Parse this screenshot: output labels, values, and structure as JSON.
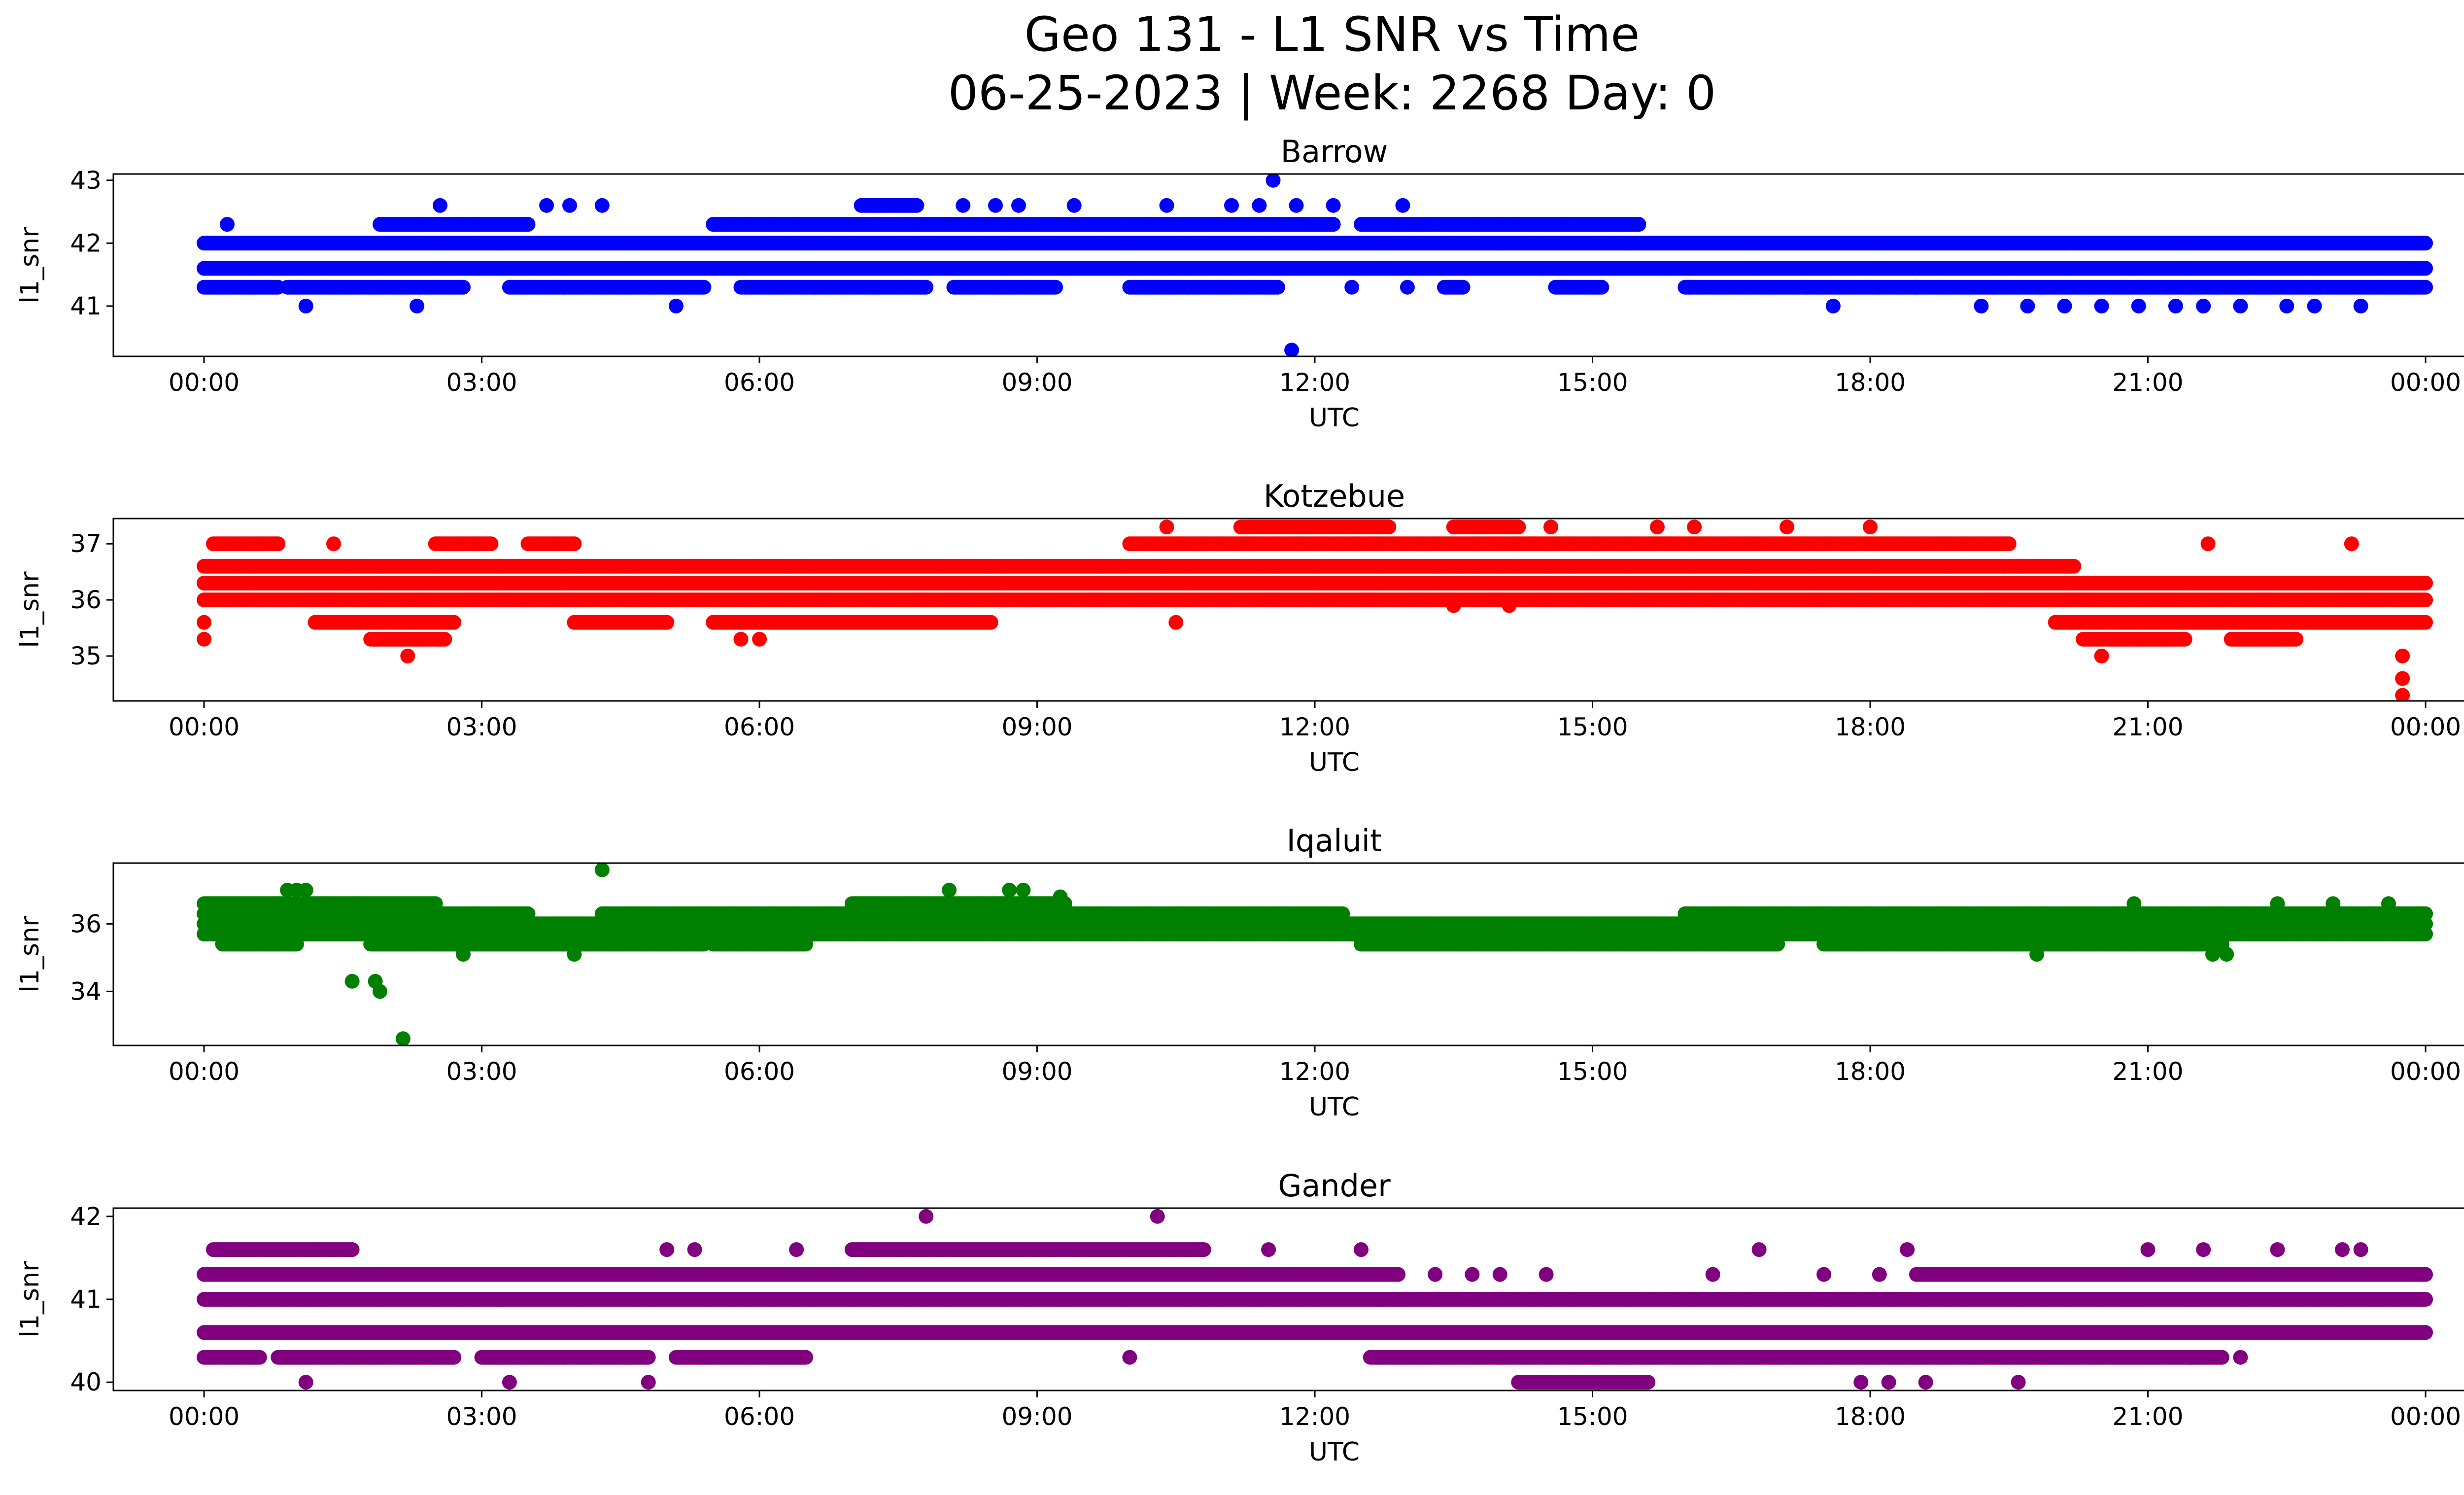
{
  "figure": {
    "title_line1": "Geo 131 - L1 SNR vs Time",
    "title_line2": "06-25-2023 | Week: 2268 Day: 0"
  },
  "chart_data": [
    {
      "type": "scatter",
      "title": "Barrow",
      "color": "#0000ff",
      "xlabel": "UTC",
      "ylabel": "l1_snr",
      "x_unit": "hours UTC (00:00 to next 00:00)",
      "xlim": [
        -0.98,
        25.4
      ],
      "ylim": [
        40.2,
        43.1
      ],
      "yticks": [
        "41",
        "42",
        "43"
      ],
      "xticks": [
        "00:00",
        "03:00",
        "06:00",
        "09:00",
        "12:00",
        "15:00",
        "18:00",
        "21:00",
        "00:00"
      ],
      "levels": [
        {
          "y": 42.0,
          "ranges": [
            [
              0,
              24
            ]
          ]
        },
        {
          "y": 41.6,
          "ranges": [
            [
              0,
              24
            ]
          ]
        },
        {
          "y": 41.3,
          "ranges": [
            [
              0,
              0.8
            ],
            [
              0.9,
              2.8
            ],
            [
              3.3,
              5.4
            ],
            [
              5.8,
              7.8
            ],
            [
              8.1,
              9.2
            ],
            [
              10.0,
              11.6
            ],
            [
              13.4,
              13.6
            ],
            [
              14.6,
              15.1
            ],
            [
              16.0,
              24
            ]
          ]
        },
        {
          "y": 42.3,
          "ranges": [
            [
              1.9,
              3.5
            ],
            [
              5.5,
              12.2
            ],
            [
              12.5,
              15.5
            ]
          ]
        },
        {
          "y": 42.6,
          "ranges": [
            [
              7.1,
              7.7
            ]
          ]
        }
      ],
      "points": [
        {
          "x": 0.25,
          "y": 42.3
        },
        {
          "x": 1.1,
          "y": 41.0
        },
        {
          "x": 2.3,
          "y": 41.0
        },
        {
          "x": 2.55,
          "y": 42.6
        },
        {
          "x": 3.7,
          "y": 42.6
        },
        {
          "x": 3.95,
          "y": 42.6
        },
        {
          "x": 4.3,
          "y": 42.6
        },
        {
          "x": 5.1,
          "y": 41.0
        },
        {
          "x": 8.2,
          "y": 42.6
        },
        {
          "x": 8.55,
          "y": 42.6
        },
        {
          "x": 8.8,
          "y": 42.6
        },
        {
          "x": 9.4,
          "y": 42.6
        },
        {
          "x": 10.4,
          "y": 42.6
        },
        {
          "x": 10.3,
          "y": 41.3
        },
        {
          "x": 11.1,
          "y": 42.6
        },
        {
          "x": 11.4,
          "y": 42.6
        },
        {
          "x": 11.55,
          "y": 43.0
        },
        {
          "x": 11.8,
          "y": 42.6
        },
        {
          "x": 12.2,
          "y": 42.6
        },
        {
          "x": 11.75,
          "y": 40.3
        },
        {
          "x": 12.4,
          "y": 41.3
        },
        {
          "x": 12.95,
          "y": 42.6
        },
        {
          "x": 13.0,
          "y": 41.3
        },
        {
          "x": 17.6,
          "y": 41.0
        },
        {
          "x": 19.2,
          "y": 41.0
        },
        {
          "x": 19.7,
          "y": 41.0
        },
        {
          "x": 20.1,
          "y": 41.0
        },
        {
          "x": 20.5,
          "y": 41.0
        },
        {
          "x": 20.9,
          "y": 41.0
        },
        {
          "x": 21.3,
          "y": 41.0
        },
        {
          "x": 21.6,
          "y": 41.0
        },
        {
          "x": 21.65,
          "y": 42.0
        },
        {
          "x": 22.0,
          "y": 41.0
        },
        {
          "x": 22.5,
          "y": 41.0
        },
        {
          "x": 22.8,
          "y": 41.0
        },
        {
          "x": 23.3,
          "y": 41.0
        },
        {
          "x": 17.3,
          "y": 41.3
        },
        {
          "x": 18.5,
          "y": 41.3
        }
      ]
    },
    {
      "type": "scatter",
      "title": "Kotzebue",
      "color": "#ff0000",
      "xlabel": "UTC",
      "ylabel": "l1_snr",
      "x_unit": "hours UTC (00:00 to next 00:00)",
      "xlim": [
        -0.98,
        25.4
      ],
      "ylim": [
        34.2,
        37.45
      ],
      "yticks": [
        "35",
        "36",
        "37"
      ],
      "xticks": [
        "00:00",
        "03:00",
        "06:00",
        "09:00",
        "12:00",
        "15:00",
        "18:00",
        "21:00",
        "00:00"
      ],
      "levels": [
        {
          "y": 36.3,
          "ranges": [
            [
              0,
              24
            ]
          ]
        },
        {
          "y": 36.0,
          "ranges": [
            [
              0,
              24
            ]
          ]
        },
        {
          "y": 36.6,
          "ranges": [
            [
              0,
              20.2
            ]
          ]
        },
        {
          "y": 35.6,
          "ranges": [
            [
              1.2,
              2.7
            ],
            [
              4.0,
              5.0
            ],
            [
              5.5,
              8.5
            ],
            [
              20.0,
              24
            ]
          ]
        },
        {
          "y": 37.0,
          "ranges": [
            [
              0.1,
              0.8
            ],
            [
              2.5,
              3.1
            ],
            [
              3.5,
              4.0
            ],
            [
              10.0,
              19.5
            ]
          ]
        },
        {
          "y": 37.3,
          "ranges": [
            [
              11.2,
              12.8
            ],
            [
              13.5,
              14.2
            ]
          ]
        },
        {
          "y": 35.3,
          "ranges": [
            [
              1.8,
              2.6
            ],
            [
              20.3,
              21.4
            ],
            [
              21.9,
              22.6
            ]
          ]
        }
      ],
      "points": [
        {
          "x": 0.0,
          "y": 35.3
        },
        {
          "x": 0.0,
          "y": 35.6
        },
        {
          "x": 1.4,
          "y": 37.0
        },
        {
          "x": 2.2,
          "y": 35.0
        },
        {
          "x": 5.8,
          "y": 35.3
        },
        {
          "x": 6.0,
          "y": 35.3
        },
        {
          "x": 10.4,
          "y": 37.3
        },
        {
          "x": 10.5,
          "y": 35.6
        },
        {
          "x": 13.5,
          "y": 35.9
        },
        {
          "x": 14.1,
          "y": 35.9
        },
        {
          "x": 14.55,
          "y": 37.3
        },
        {
          "x": 15.7,
          "y": 37.3
        },
        {
          "x": 16.1,
          "y": 37.3
        },
        {
          "x": 17.1,
          "y": 37.3
        },
        {
          "x": 18.0,
          "y": 37.3
        },
        {
          "x": 20.5,
          "y": 35.0
        },
        {
          "x": 21.65,
          "y": 37.0
        },
        {
          "x": 23.2,
          "y": 37.0
        },
        {
          "x": 23.75,
          "y": 35.0
        },
        {
          "x": 23.75,
          "y": 34.6
        },
        {
          "x": 23.75,
          "y": 34.3
        }
      ]
    },
    {
      "type": "scatter",
      "title": "Iqaluit",
      "color": "#008000",
      "xlabel": "UTC",
      "ylabel": "l1_snr",
      "x_unit": "hours UTC (00:00 to next 00:00)",
      "xlim": [
        -0.98,
        25.4
      ],
      "ylim": [
        32.4,
        37.8
      ],
      "yticks": [
        "34",
        "36"
      ],
      "xticks": [
        "00:00",
        "03:00",
        "06:00",
        "09:00",
        "12:00",
        "15:00",
        "18:00",
        "21:00",
        "00:00"
      ],
      "levels": [
        {
          "y": 36.0,
          "ranges": [
            [
              0,
              24
            ]
          ]
        },
        {
          "y": 35.7,
          "ranges": [
            [
              0,
              24
            ]
          ]
        },
        {
          "y": 35.4,
          "ranges": [
            [
              0.2,
              1.0
            ],
            [
              1.8,
              5.4
            ],
            [
              5.5,
              6.5
            ],
            [
              12.5,
              17.0
            ],
            [
              17.5,
              21.8
            ]
          ]
        },
        {
          "y": 36.3,
          "ranges": [
            [
              0,
              3.5
            ],
            [
              4.3,
              12.3
            ],
            [
              16.0,
              24
            ]
          ]
        },
        {
          "y": 36.6,
          "ranges": [
            [
              0.0,
              2.5
            ],
            [
              7.0,
              9.3
            ]
          ]
        }
      ],
      "points": [
        {
          "x": 0.9,
          "y": 37.0
        },
        {
          "x": 1.0,
          "y": 37.0
        },
        {
          "x": 1.1,
          "y": 37.0
        },
        {
          "x": 1.6,
          "y": 34.3
        },
        {
          "x": 1.85,
          "y": 34.3
        },
        {
          "x": 1.9,
          "y": 34.0
        },
        {
          "x": 2.15,
          "y": 32.6
        },
        {
          "x": 2.8,
          "y": 35.1
        },
        {
          "x": 4.0,
          "y": 35.1
        },
        {
          "x": 4.3,
          "y": 37.6
        },
        {
          "x": 8.05,
          "y": 37.0
        },
        {
          "x": 8.7,
          "y": 37.0
        },
        {
          "x": 8.85,
          "y": 37.0
        },
        {
          "x": 9.25,
          "y": 36.8
        },
        {
          "x": 19.8,
          "y": 35.1
        },
        {
          "x": 21.7,
          "y": 35.1
        },
        {
          "x": 21.85,
          "y": 35.1
        },
        {
          "x": 20.85,
          "y": 36.6
        },
        {
          "x": 22.4,
          "y": 36.6
        },
        {
          "x": 23.0,
          "y": 36.6
        },
        {
          "x": 23.6,
          "y": 36.6
        }
      ]
    },
    {
      "type": "scatter",
      "title": "Gander",
      "color": "#800080",
      "xlabel": "UTC",
      "ylabel": "l1_snr",
      "x_unit": "hours UTC (00:00 to next 00:00)",
      "xlim": [
        -0.98,
        25.4
      ],
      "ylim": [
        39.9,
        42.1
      ],
      "yticks": [
        "40",
        "41",
        "42"
      ],
      "xticks": [
        "00:00",
        "03:00",
        "06:00",
        "09:00",
        "12:00",
        "15:00",
        "18:00",
        "21:00",
        "00:00"
      ],
      "levels": [
        {
          "y": 41.0,
          "ranges": [
            [
              0,
              24
            ]
          ]
        },
        {
          "y": 40.6,
          "ranges": [
            [
              0,
              24
            ]
          ]
        },
        {
          "y": 41.3,
          "ranges": [
            [
              0,
              12.9
            ],
            [
              18.5,
              24
            ]
          ]
        },
        {
          "y": 40.3,
          "ranges": [
            [
              0,
              0.6
            ],
            [
              0.8,
              2.7
            ],
            [
              3.0,
              4.8
            ],
            [
              5.1,
              6.5
            ],
            [
              12.6,
              21.8
            ]
          ]
        },
        {
          "y": 41.6,
          "ranges": [
            [
              0.1,
              1.6
            ],
            [
              7.0,
              10.8
            ]
          ]
        },
        {
          "y": 40.0,
          "ranges": [
            [
              14.2,
              15.6
            ]
          ]
        }
      ],
      "points": [
        {
          "x": 1.1,
          "y": 40.0
        },
        {
          "x": 3.3,
          "y": 40.0
        },
        {
          "x": 4.8,
          "y": 40.0
        },
        {
          "x": 5.0,
          "y": 41.6
        },
        {
          "x": 5.3,
          "y": 41.6
        },
        {
          "x": 6.4,
          "y": 41.6
        },
        {
          "x": 7.8,
          "y": 42.0
        },
        {
          "x": 10.3,
          "y": 42.0
        },
        {
          "x": 10.0,
          "y": 40.3
        },
        {
          "x": 11.5,
          "y": 41.6
        },
        {
          "x": 12.5,
          "y": 41.6
        },
        {
          "x": 13.3,
          "y": 41.3
        },
        {
          "x": 13.7,
          "y": 41.3
        },
        {
          "x": 14.0,
          "y": 41.3
        },
        {
          "x": 14.5,
          "y": 41.3
        },
        {
          "x": 16.3,
          "y": 41.3
        },
        {
          "x": 16.8,
          "y": 41.6
        },
        {
          "x": 17.5,
          "y": 41.3
        },
        {
          "x": 18.4,
          "y": 41.6
        },
        {
          "x": 18.1,
          "y": 41.3
        },
        {
          "x": 17.9,
          "y": 40.0
        },
        {
          "x": 18.2,
          "y": 40.0
        },
        {
          "x": 18.6,
          "y": 40.0
        },
        {
          "x": 19.6,
          "y": 40.0
        },
        {
          "x": 21.0,
          "y": 41.6
        },
        {
          "x": 21.6,
          "y": 41.6
        },
        {
          "x": 22.4,
          "y": 41.6
        },
        {
          "x": 23.1,
          "y": 41.6
        },
        {
          "x": 23.3,
          "y": 41.6
        },
        {
          "x": 21.45,
          "y": 40.3
        },
        {
          "x": 22.0,
          "y": 40.3
        }
      ]
    }
  ]
}
